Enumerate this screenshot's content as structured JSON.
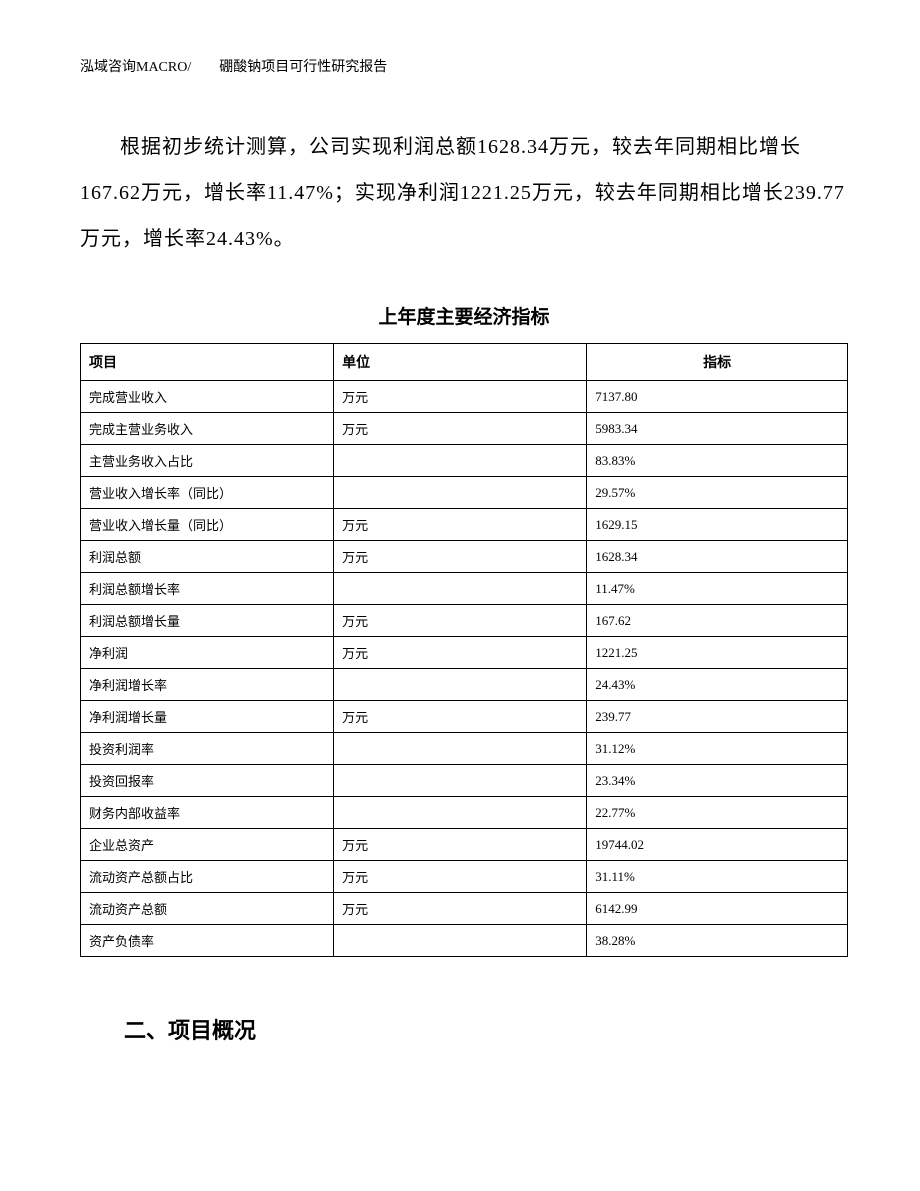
{
  "header": "泓域咨询MACRO/　　硼酸钠项目可行性研究报告",
  "paragraph": "根据初步统计测算，公司实现利润总额1628.34万元，较去年同期相比增长167.62万元，增长率11.47%；实现净利润1221.25万元，较去年同期相比增长239.77万元，增长率24.43%。",
  "table": {
    "title": "上年度主要经济指标",
    "columns": {
      "item": "项目",
      "unit": "单位",
      "value": "指标"
    },
    "rows": [
      {
        "item": "完成营业收入",
        "unit": "万元",
        "value": "7137.80"
      },
      {
        "item": "完成主营业务收入",
        "unit": "万元",
        "value": "5983.34"
      },
      {
        "item": "主营业务收入占比",
        "unit": "",
        "value": "83.83%"
      },
      {
        "item": "营业收入增长率（同比）",
        "unit": "",
        "value": "29.57%"
      },
      {
        "item": "营业收入增长量（同比）",
        "unit": "万元",
        "value": "1629.15"
      },
      {
        "item": "利润总额",
        "unit": "万元",
        "value": "1628.34"
      },
      {
        "item": "利润总额增长率",
        "unit": "",
        "value": "11.47%"
      },
      {
        "item": "利润总额增长量",
        "unit": "万元",
        "value": "167.62"
      },
      {
        "item": "净利润",
        "unit": "万元",
        "value": "1221.25"
      },
      {
        "item": "净利润增长率",
        "unit": "",
        "value": "24.43%"
      },
      {
        "item": "净利润增长量",
        "unit": "万元",
        "value": "239.77"
      },
      {
        "item": "投资利润率",
        "unit": "",
        "value": "31.12%"
      },
      {
        "item": "投资回报率",
        "unit": "",
        "value": "23.34%"
      },
      {
        "item": "财务内部收益率",
        "unit": "",
        "value": "22.77%"
      },
      {
        "item": "企业总资产",
        "unit": "万元",
        "value": "19744.02"
      },
      {
        "item": "流动资产总额占比",
        "unit": "万元",
        "value": "31.11%"
      },
      {
        "item": "流动资产总额",
        "unit": "万元",
        "value": "6142.99"
      },
      {
        "item": "资产负债率",
        "unit": "",
        "value": "38.28%"
      }
    ]
  },
  "section": "二、项目概况"
}
